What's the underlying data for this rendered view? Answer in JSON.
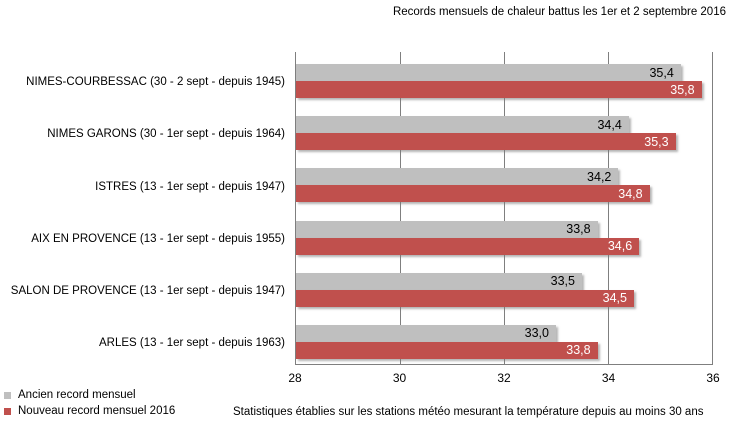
{
  "title": "Records mensuels de chaleur battus les 1er et 2 septembre 2016",
  "footer_note": "Statistiques établies sur les stations météo mesurant la température depuis au moins 30 ans",
  "legend": {
    "items": [
      {
        "label": "Ancien record mensuel",
        "color": "#bfbfbf"
      },
      {
        "label": "Nouveau record mensuel 2016",
        "color": "#c0504d"
      }
    ]
  },
  "colors": {
    "old_record_bar": "#bfbfbf",
    "new_record_bar": "#c0504d",
    "gridline": "#7f7f7f",
    "old_record_label_text": "#000000",
    "new_record_label_text": "#ffffff"
  },
  "chart_data": {
    "type": "bar",
    "orientation": "horizontal",
    "title": "Records mensuels de chaleur battus les 1er et 2 septembre 2016",
    "xlabel": "",
    "ylabel": "",
    "xlim": [
      28,
      36
    ],
    "xticks": [
      28,
      30,
      32,
      34,
      36
    ],
    "xtick_labels": [
      "28",
      "30",
      "32",
      "34",
      "36"
    ],
    "grid": true,
    "legend_position": "bottom-left",
    "categories": [
      "NIMES-COURBESSAC (30 - 2 sept - depuis 1945)",
      "NIMES GARONS (30 - 1er sept - depuis 1964)",
      "ISTRES (13 - 1er sept - depuis 1947)",
      "AIX EN PROVENCE (13 - 1er sept - depuis 1955)",
      "SALON DE PROVENCE (13 - 1er sept - depuis 1947)",
      "ARLES (13 - 1er sept - depuis 1963)"
    ],
    "series": [
      {
        "name": "Ancien record mensuel",
        "color": "#bfbfbf",
        "label_color": "#000000",
        "values": [
          35.4,
          34.4,
          34.2,
          33.8,
          33.5,
          33.0
        ],
        "display_values": [
          "35,4",
          "34,4",
          "34,2",
          "33,8",
          "33,5",
          "33,0"
        ]
      },
      {
        "name": "Nouveau record mensuel 2016",
        "color": "#c0504d",
        "label_color": "#ffffff",
        "values": [
          35.8,
          35.3,
          34.8,
          34.6,
          34.5,
          33.8
        ],
        "display_values": [
          "35,8",
          "35,3",
          "34,8",
          "34,6",
          "34,5",
          "33,8"
        ]
      }
    ]
  }
}
